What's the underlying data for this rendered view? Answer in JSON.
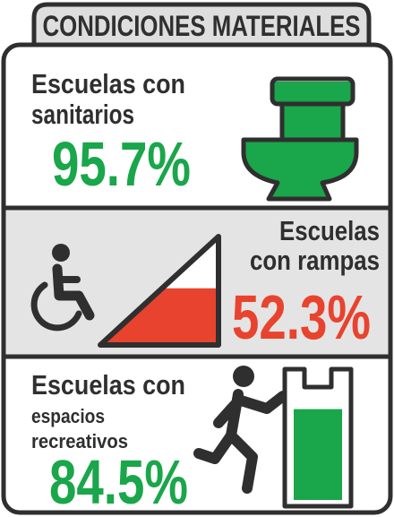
{
  "title": "CONDICIONES MATERIALES",
  "sections": [
    {
      "lines": [
        "Escuelas con",
        "sanitarios"
      ],
      "percent": {
        "value": 95.7,
        "label": "95.7%"
      }
    },
    {
      "lines": [
        "Escuelas",
        "con rampas"
      ],
      "percent": {
        "value": 52.3,
        "label": "52.3%"
      }
    },
    {
      "lines": [
        "Escuelas con",
        "espacios",
        "recreativos"
      ],
      "percent": {
        "value": 84.5,
        "label": "84.5%"
      }
    }
  ]
}
